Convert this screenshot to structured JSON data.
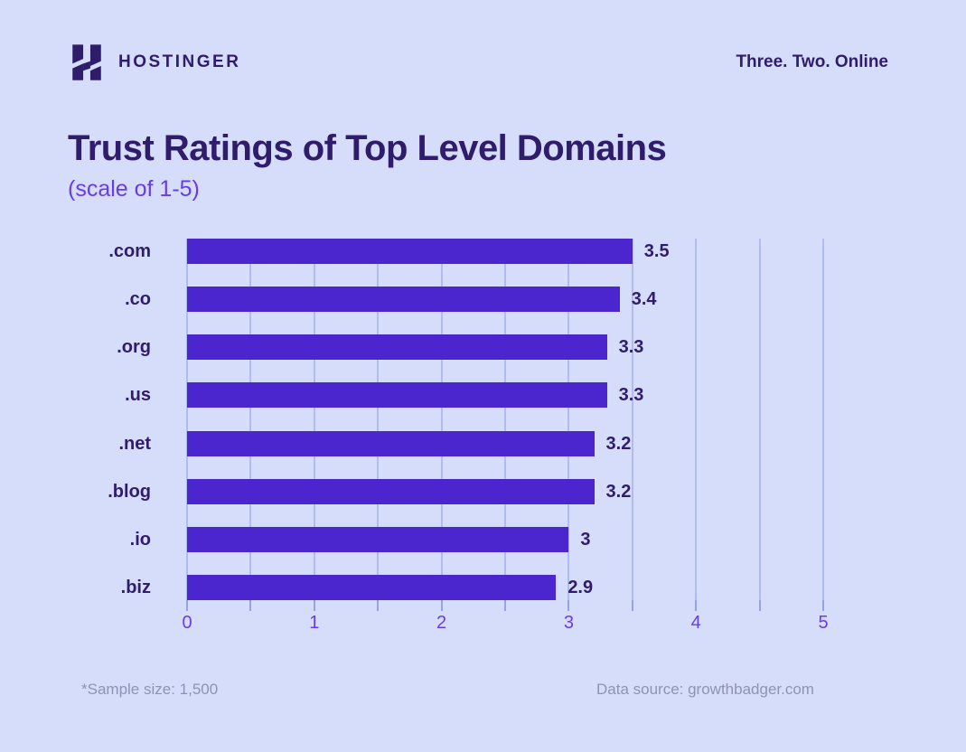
{
  "header": {
    "brand": "HOSTINGER",
    "tagline": "Three. Two. Online",
    "logo_icon": "hostinger-h-logo-icon"
  },
  "title": {
    "main": "Trust Ratings of Top Level Domains",
    "subtitle": "(scale of 1-5)"
  },
  "chart_data": {
    "type": "bar",
    "orientation": "horizontal",
    "title": "Trust Ratings of Top Level Domains",
    "subtitle": "(scale of 1-5)",
    "categories": [
      ".com",
      ".co",
      ".org",
      ".us",
      ".net",
      ".blog",
      ".io",
      ".biz"
    ],
    "values": [
      3.5,
      3.4,
      3.3,
      3.3,
      3.2,
      3.2,
      3.0,
      2.9
    ],
    "value_labels": [
      "3.5",
      "3.4",
      "3.3",
      "3.3",
      "3.2",
      "3.2",
      "3",
      "2.9"
    ],
    "xlim": [
      0,
      5
    ],
    "x_ticks": [
      0,
      1,
      2,
      3,
      4,
      5
    ],
    "gridline_step": 0.5,
    "grid": true,
    "legend": false,
    "xlabel": "",
    "ylabel": ""
  },
  "footer": {
    "sample": "*Sample size: 1,500",
    "source": "Data source: growthbadger.com"
  },
  "colors": {
    "background": "#d6ddfb",
    "bar": "#4b26cf",
    "dark_text": "#2f1c6a",
    "accent_purple": "#673de6",
    "gridline": "#b2bbf0",
    "tick": "#9aa2e2",
    "muted_text": "#8f93b2"
  }
}
